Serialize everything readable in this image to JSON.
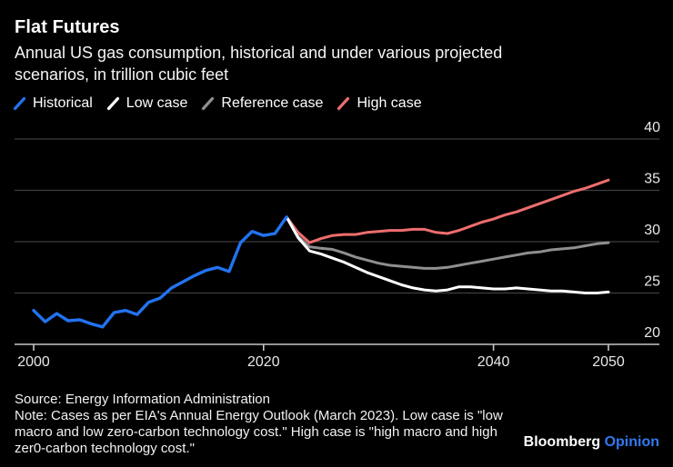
{
  "header": {
    "title": "Flat Futures",
    "subtitle_lines": [
      "Annual US gas consumption, historical and under various projected",
      "scenarios, in trillion cubic feet"
    ]
  },
  "legend": {
    "items": [
      {
        "label": "Historical",
        "color": "#2273f0"
      },
      {
        "label": "Low case",
        "color": "#ffffff"
      },
      {
        "label": "Reference case",
        "color": "#8f8f8f"
      },
      {
        "label": "High case",
        "color": "#ee6d6e"
      }
    ]
  },
  "chart_data": {
    "type": "line",
    "title": "Flat Futures",
    "subtitle": "Annual US gas consumption, historical and under various projected scenarios, in trillion cubic feet",
    "unit": "trillion cubic feet",
    "xlabel": "",
    "ylabel": "",
    "xlim": [
      2000,
      2050
    ],
    "ylim": [
      20,
      40
    ],
    "grid": "horizontal",
    "legend_position": "top",
    "colors": {
      "gridline": "#3d3d3d",
      "axis": "#c6c6c6",
      "tick_label": "#e8e8e8"
    },
    "xticks": [
      {
        "value": 2000,
        "label": "2000"
      },
      {
        "value": 2020,
        "label": "2020"
      },
      {
        "value": 2040,
        "label": "2040"
      },
      {
        "value": 2050,
        "label": "2050"
      }
    ],
    "yticks": [
      {
        "value": 40,
        "label": "40"
      },
      {
        "value": 35,
        "label": "35"
      },
      {
        "value": 30,
        "label": "30"
      },
      {
        "value": 25,
        "label": "25"
      },
      {
        "value": 20,
        "label": "20",
        "axis": true
      }
    ],
    "series": [
      {
        "name": "High case",
        "color": "#ee6d6e",
        "start_year": 2022,
        "values": [
          32.4,
          30.9,
          29.9,
          30.3,
          30.6,
          30.7,
          30.7,
          30.9,
          31.0,
          31.1,
          31.1,
          31.2,
          31.2,
          30.9,
          30.8,
          31.1,
          31.5,
          31.9,
          32.2,
          32.6,
          32.9,
          33.3,
          33.7,
          34.1,
          34.5,
          34.9,
          35.2,
          35.6,
          36.0
        ]
      },
      {
        "name": "Reference case",
        "color": "#8f8f8f",
        "start_year": 2022,
        "values": [
          32.4,
          30.5,
          29.5,
          29.35,
          29.25,
          28.9,
          28.5,
          28.2,
          27.9,
          27.7,
          27.6,
          27.5,
          27.4,
          27.4,
          27.5,
          27.7,
          27.9,
          28.1,
          28.3,
          28.5,
          28.7,
          28.9,
          29.0,
          29.2,
          29.3,
          29.4,
          29.6,
          29.8,
          29.9
        ]
      },
      {
        "name": "Low case",
        "color": "#ffffff",
        "start_year": 2022,
        "values": [
          32.4,
          30.4,
          29.1,
          28.8,
          28.4,
          28.0,
          27.5,
          27.0,
          26.6,
          26.2,
          25.8,
          25.5,
          25.3,
          25.2,
          25.3,
          25.6,
          25.6,
          25.5,
          25.4,
          25.4,
          25.5,
          25.4,
          25.3,
          25.2,
          25.2,
          25.1,
          25.0,
          25.0,
          25.1
        ]
      },
      {
        "name": "Historical",
        "color": "#2273f0",
        "start_year": 2000,
        "values": [
          23.3,
          22.2,
          23.0,
          22.3,
          22.4,
          22.0,
          21.7,
          23.1,
          23.3,
          22.9,
          24.1,
          24.5,
          25.5,
          26.1,
          26.7,
          27.2,
          27.5,
          27.1,
          29.9,
          31.0,
          30.6,
          30.8,
          32.4
        ]
      }
    ]
  },
  "footer": {
    "source": "Source: Energy Information Administration",
    "note_lines": [
      "Note: Cases as per EIA's Annual Energy Outlook (March 2023). Low case is \"low",
      "macro and low zero-carbon technology cost.\" High case is \"high macro and high",
      "zer0-carbon technology cost.\""
    ]
  },
  "brand": {
    "name": "Bloomberg",
    "product": "Opinion",
    "product_color": "#3379f2"
  }
}
